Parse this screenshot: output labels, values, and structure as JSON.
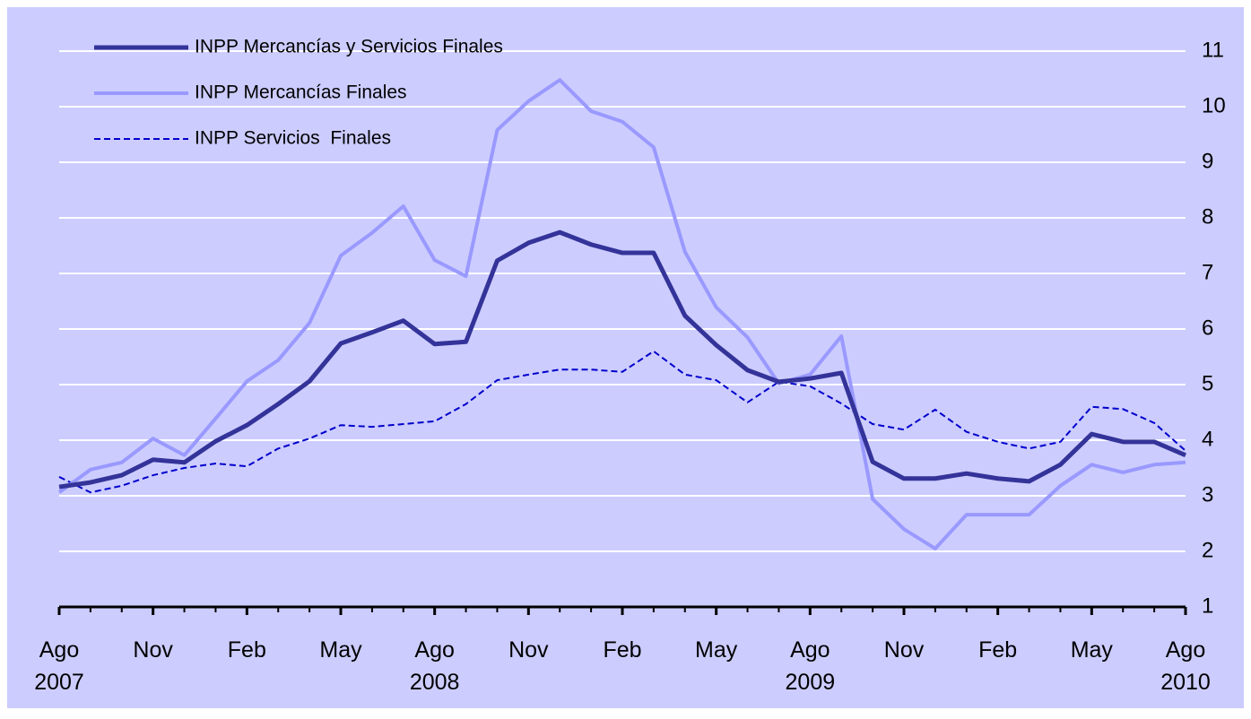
{
  "chart_data": {
    "type": "line",
    "categories": [
      "Ago\n2007",
      null,
      null,
      "Nov",
      null,
      null,
      "Feb",
      null,
      null,
      "May",
      null,
      null,
      "Ago\n2008",
      null,
      null,
      "Nov",
      null,
      null,
      "Feb",
      null,
      null,
      "May",
      null,
      null,
      "Ago\n2009",
      null,
      null,
      "Nov",
      null,
      null,
      "Feb",
      null,
      null,
      "May",
      null,
      null,
      "Ago\n2010"
    ],
    "series": [
      {
        "name": "INPP Mercancías y Servicios Finales",
        "color": "#333399",
        "line_width": 5,
        "dashed": false,
        "values": [
          3.16,
          3.24,
          3.37,
          3.65,
          3.6,
          3.98,
          4.27,
          4.65,
          5.06,
          5.74,
          5.94,
          6.15,
          5.73,
          5.77,
          7.23,
          7.55,
          7.74,
          7.52,
          7.37,
          7.37,
          6.24,
          5.71,
          5.26,
          5.05,
          5.11,
          5.21,
          3.61,
          3.31,
          3.31,
          3.4,
          3.31,
          3.26,
          3.56,
          4.11,
          3.97,
          3.97,
          3.73
        ]
      },
      {
        "name": "INPP Mercancías Finales",
        "color": "#9999ff",
        "line_width": 4,
        "dashed": false,
        "values": [
          3.06,
          3.47,
          3.6,
          4.03,
          3.73,
          4.39,
          5.06,
          5.44,
          6.11,
          7.32,
          7.73,
          8.21,
          7.24,
          6.95,
          9.58,
          10.1,
          10.48,
          9.92,
          9.73,
          9.27,
          7.39,
          6.39,
          5.85,
          5.02,
          5.18,
          5.87,
          2.94,
          2.4,
          2.05,
          2.66,
          2.66,
          2.66,
          3.18,
          3.56,
          3.42,
          3.56,
          3.6
        ]
      },
      {
        "name": "INPP Servicios  Finales",
        "color": "#0000cc",
        "line_width": 2,
        "dashed": true,
        "values": [
          3.34,
          3.06,
          3.18,
          3.37,
          3.5,
          3.58,
          3.53,
          3.85,
          4.03,
          4.27,
          4.24,
          4.29,
          4.34,
          4.65,
          5.08,
          5.18,
          5.27,
          5.27,
          5.23,
          5.6,
          5.18,
          5.08,
          4.68,
          5.05,
          4.97,
          4.66,
          4.29,
          4.19,
          4.55,
          4.15,
          3.97,
          3.85,
          3.97,
          4.6,
          4.56,
          4.31,
          3.81
        ]
      }
    ],
    "ylim": [
      1,
      11
    ],
    "yticks": [
      1,
      2,
      3,
      4,
      5,
      6,
      7,
      8,
      9,
      10,
      11
    ],
    "grid": true,
    "y_axis_side": "right",
    "legend": "upper left",
    "background": "#ccccff"
  }
}
